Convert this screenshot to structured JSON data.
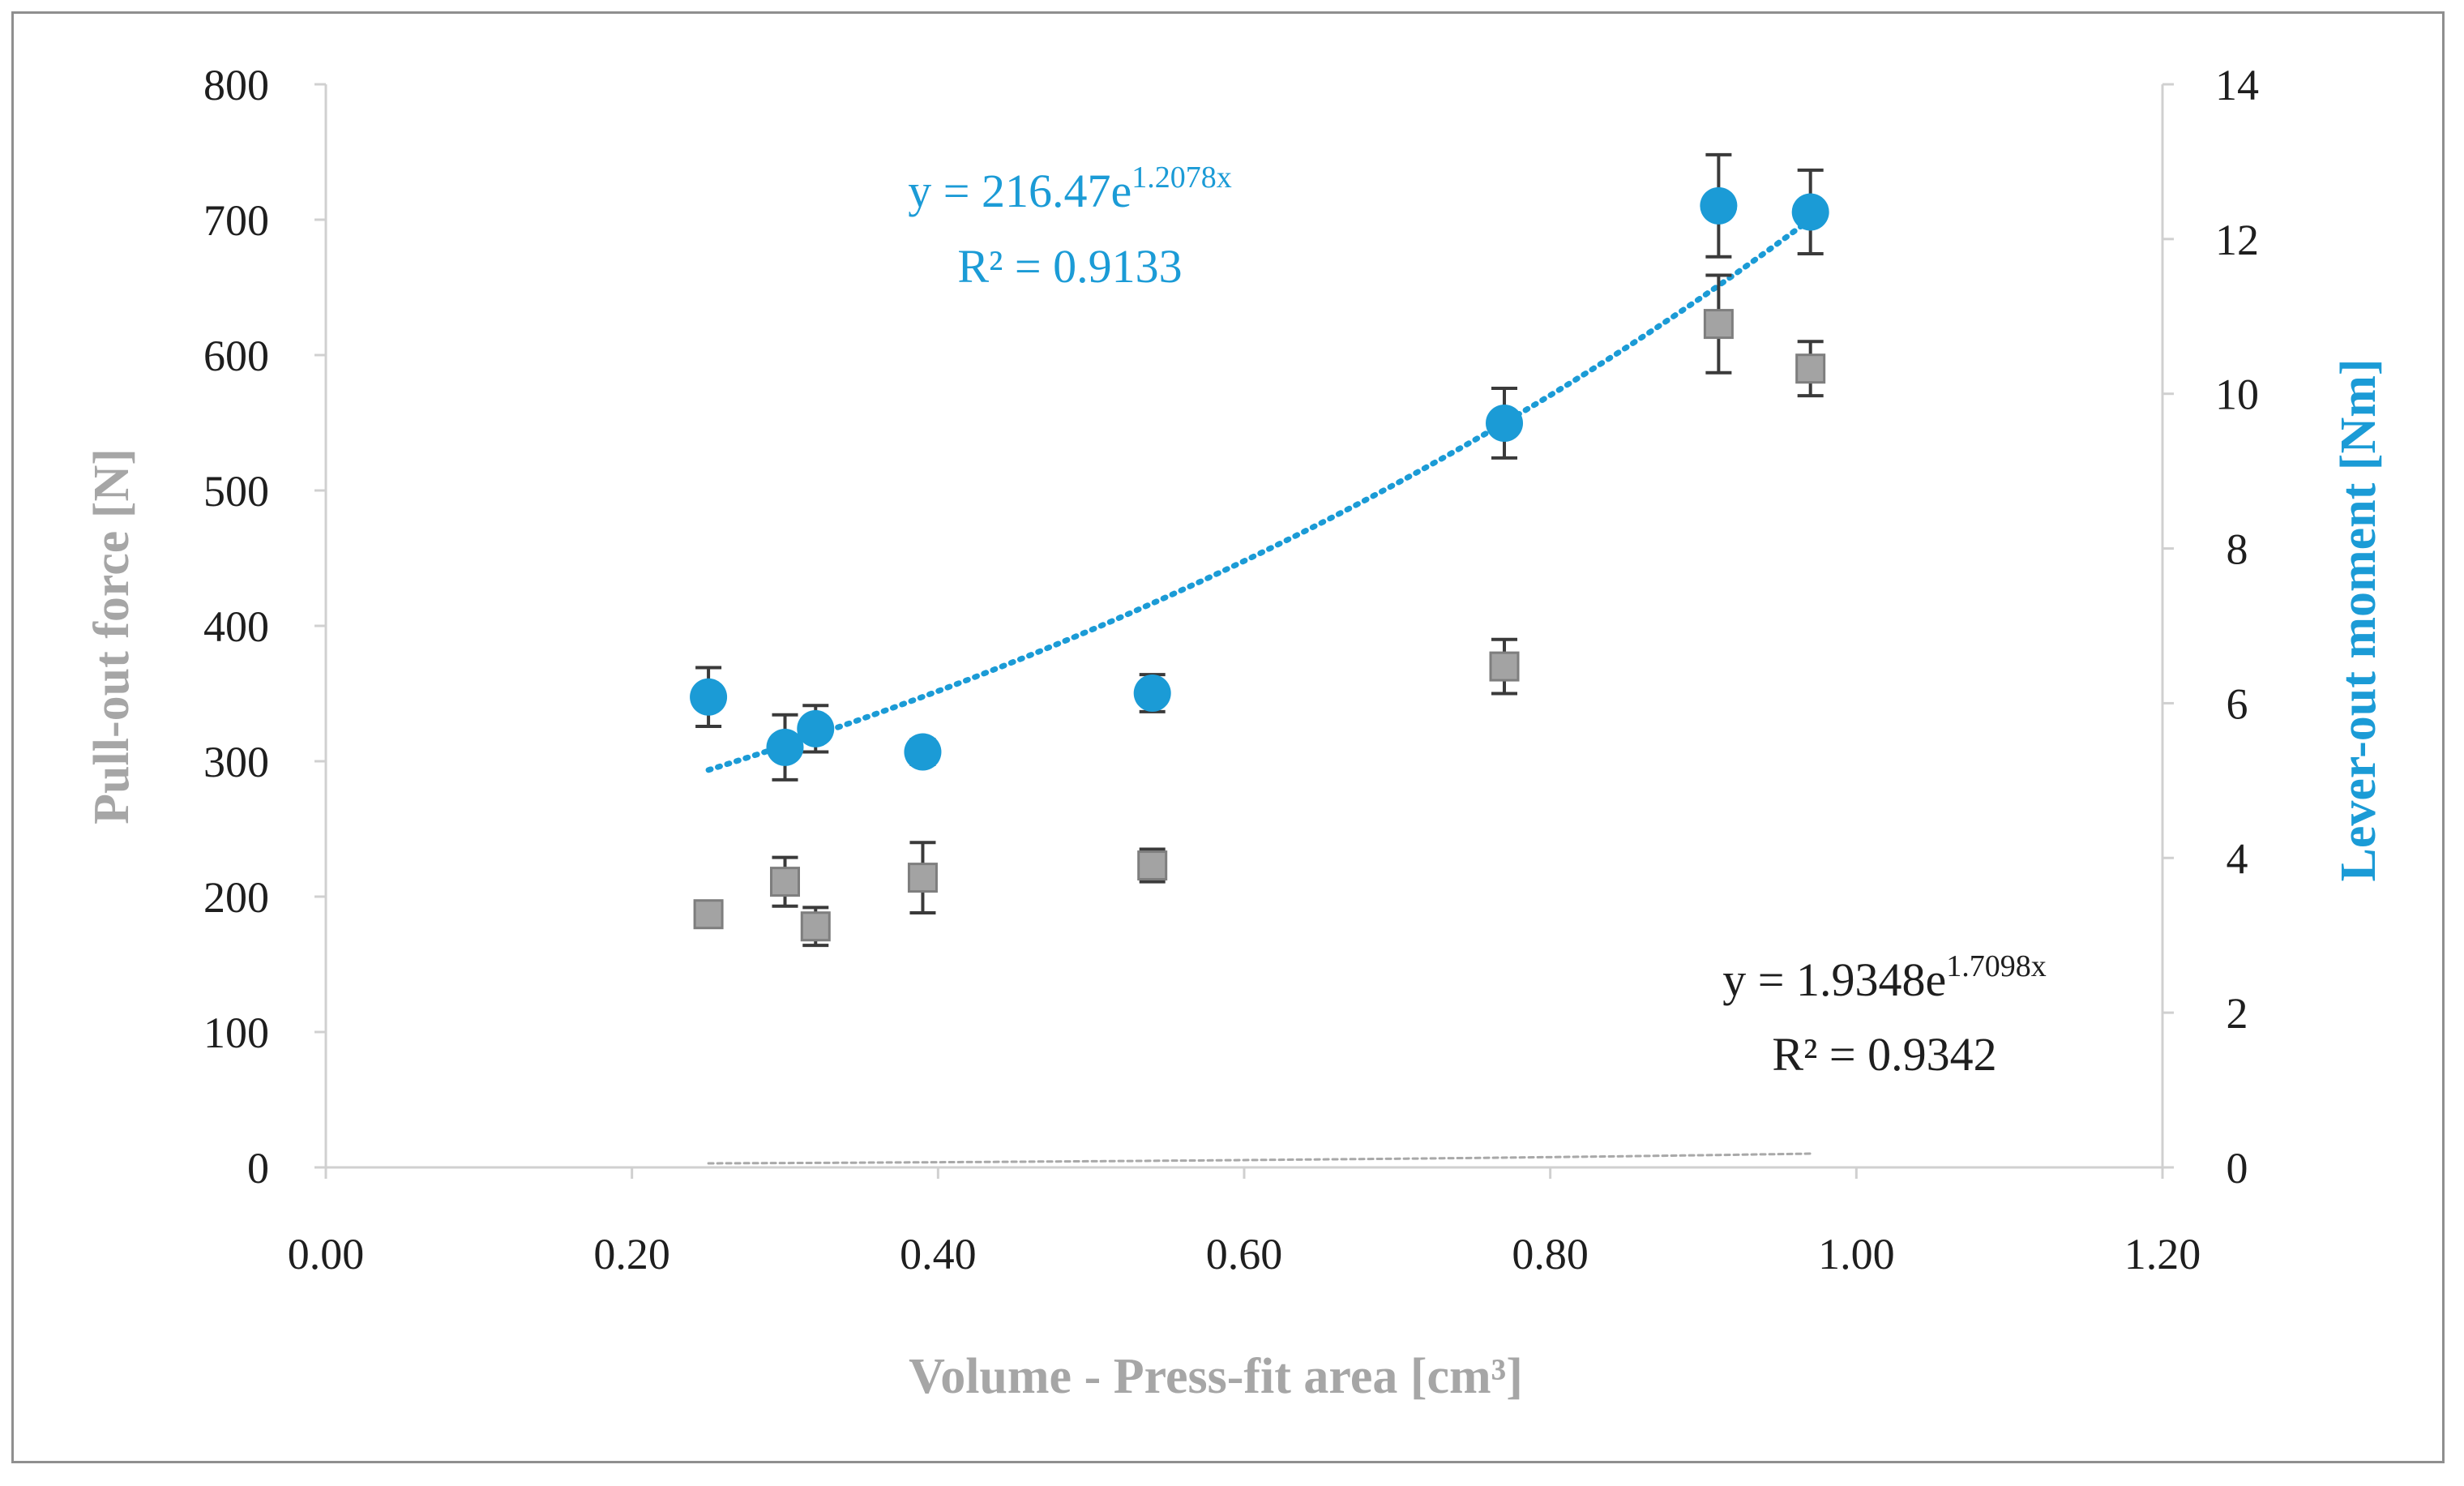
{
  "chart_data": {
    "type": "scatter",
    "x_axis": {
      "label": "Volume  - Press-fit area [cm³]",
      "min": 0,
      "max": 1.2,
      "step": 0.2,
      "tick_labels": [
        "0.00",
        "0.20",
        "0.40",
        "0.60",
        "0.80",
        "1.00",
        "1.20"
      ]
    },
    "y_axis_left": {
      "label": "Pull-out force [N]",
      "min": 0,
      "max": 800,
      "step": 100,
      "tick_labels": [
        "0",
        "100",
        "200",
        "300",
        "400",
        "500",
        "600",
        "700",
        "800"
      ]
    },
    "y_axis_right": {
      "label": "Lever-out moment [Nm]",
      "min": 0,
      "max": 14,
      "step": 2,
      "tick_labels": [
        "0",
        "2",
        "4",
        "6",
        "8",
        "10",
        "12",
        "14"
      ]
    },
    "series": [
      {
        "name": "Pull-out force",
        "axis": "left",
        "marker": "square",
        "color": "#a3a3a3",
        "x": [
          0.25,
          0.3,
          0.32,
          0.39,
          0.54,
          0.77,
          0.91,
          0.97
        ],
        "y": [
          187,
          211,
          178,
          214,
          223,
          370,
          623,
          590
        ],
        "error": [
          0,
          18,
          14,
          26,
          12,
          20,
          36,
          20
        ],
        "trendline": {
          "type": "exponential",
          "a": 1.9348,
          "b": 1.7098,
          "equation_prefix": "y = 1.9348e",
          "equation_exponent": "1.7098x",
          "r2_label": "R² = 0.9342",
          "color": "#a9a9a9"
        }
      },
      {
        "name": "Lever-out moment",
        "axis": "right",
        "marker": "circle",
        "color": "#1b9bd6",
        "x": [
          0.25,
          0.3,
          0.32,
          0.39,
          0.54,
          0.77,
          0.91,
          0.97
        ],
        "y": [
          6.08,
          5.43,
          5.67,
          5.37,
          6.13,
          9.62,
          12.43,
          12.35
        ],
        "error": [
          0.38,
          0.42,
          0.3,
          0.16,
          0.24,
          0.45,
          0.66,
          0.54
        ],
        "trendline": {
          "type": "exponential",
          "a": 216.47,
          "b": 1.2078,
          "equation_prefix": "y = 216.47e",
          "equation_exponent": "1.2078x",
          "r2_label": "R² = 0.9133",
          "color": "#1b9bd6"
        }
      }
    ]
  }
}
